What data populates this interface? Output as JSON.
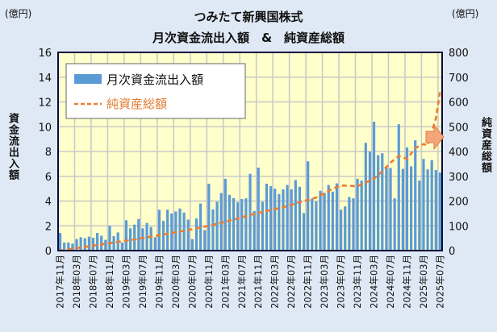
{
  "chart_data": {
    "type": "bar+line",
    "title": "つみたて新興国株式",
    "subtitle": "月次資金流出入額　&　純資産総額",
    "left_unit": "(億円)",
    "right_unit": "(億円)",
    "ylabel": "資金流出入額",
    "y2label": "純資産総額",
    "ylim": [
      0,
      16
    ],
    "y2lim": [
      0,
      800
    ],
    "yticks": [
      "0",
      "2",
      "4",
      "6",
      "8",
      "10",
      "12",
      "14",
      "16"
    ],
    "y2ticks": [
      "0",
      "100",
      "200",
      "300",
      "400",
      "500",
      "600",
      "700",
      "800"
    ],
    "start_month": "2017-11",
    "xticks": [
      "2017年11月",
      "2018年03月",
      "2018年07月",
      "2018年11月",
      "2019年03月",
      "2019年07月",
      "2019年11月",
      "2020年03月",
      "2020年07月",
      "2020年11月",
      "2021年03月",
      "2021年07月",
      "2021年11月",
      "2022年03月",
      "2022年07月",
      "2022年11月",
      "2023年03月",
      "2023年07月",
      "2023年11月",
      "2024年03月",
      "2024年07月",
      "2024年11月",
      "2025年03月",
      "2025年07月"
    ],
    "legend": [
      {
        "name": "月次資金流出入額",
        "color": "#5b9bd5"
      },
      {
        "name": "純資産総額",
        "color": "#ed7d31"
      }
    ],
    "legend_position": "top-left",
    "grid": true,
    "bars": {
      "name": "月次資金流出入額",
      "values": [
        1.43,
        0.65,
        0.65,
        0.56,
        0.93,
        1.08,
        1.0,
        1.13,
        1.04,
        1.43,
        1.2,
        0.87,
        2.0,
        1.17,
        1.47,
        0.65,
        2.45,
        1.8,
        2.1,
        2.55,
        1.8,
        2.23,
        1.9,
        1.08,
        3.3,
        2.4,
        3.3,
        3.0,
        3.16,
        3.4,
        3.07,
        2.5,
        0.93,
        2.6,
        3.8,
        1.65,
        5.4,
        3.33,
        3.94,
        4.65,
        5.8,
        4.5,
        4.24,
        3.9,
        4.16,
        4.22,
        6.2,
        3.2,
        6.7,
        3.94,
        5.4,
        5.2,
        5.0,
        4.57,
        4.94,
        5.3,
        4.94,
        5.7,
        5.15,
        3.03,
        7.2,
        4.2,
        3.96,
        4.83,
        4.65,
        5.3,
        4.76,
        5.43,
        3.3,
        3.57,
        4.33,
        4.22,
        5.8,
        5.65,
        8.7,
        8.0,
        10.4,
        7.7,
        7.86,
        6.67,
        6.67,
        4.22,
        10.2,
        6.6,
        8.33,
        6.8,
        8.9,
        5.65,
        7.4,
        6.56,
        7.3,
        6.5,
        6.3
      ]
    },
    "line": {
      "name": "純資産総額",
      "points": [
        [
          0,
          0
        ],
        [
          6,
          15
        ],
        [
          12,
          30
        ],
        [
          18,
          45
        ],
        [
          24,
          62
        ],
        [
          30,
          80
        ],
        [
          36,
          100
        ],
        [
          42,
          125
        ],
        [
          46,
          144
        ],
        [
          50,
          160
        ],
        [
          54,
          175
        ],
        [
          58,
          195
        ],
        [
          62,
          214
        ],
        [
          66,
          250
        ],
        [
          68,
          263
        ],
        [
          72,
          260
        ],
        [
          74,
          275
        ],
        [
          76,
          290
        ],
        [
          78,
          320
        ],
        [
          80,
          355
        ],
        [
          82,
          382
        ],
        [
          84,
          370
        ],
        [
          86,
          414
        ],
        [
          88,
          430
        ],
        [
          89,
          425
        ],
        [
          90,
          480
        ],
        [
          91,
          534
        ],
        [
          92,
          642
        ]
      ]
    },
    "colors": {
      "plot_bg": "#ffffcc",
      "grid": "#c8c8c8",
      "arrow": "#f4a57a"
    }
  }
}
